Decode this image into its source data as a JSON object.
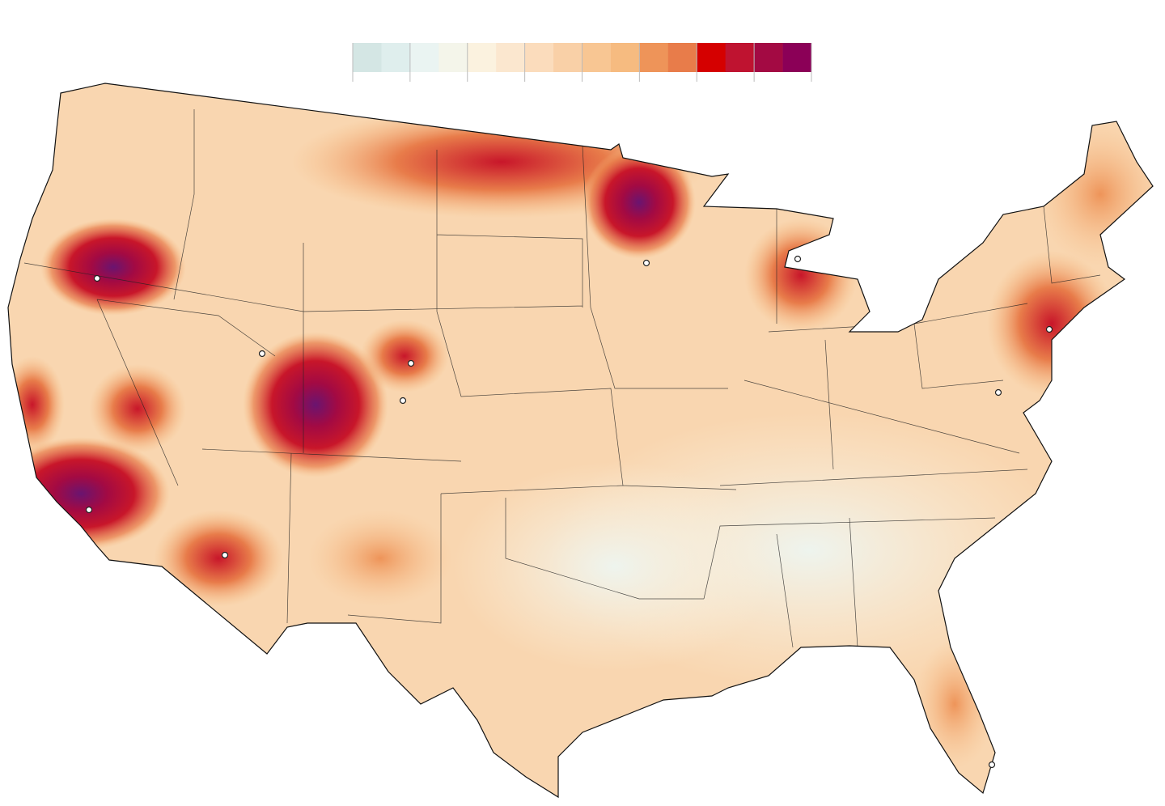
{
  "legend": {
    "colors": [
      "#d4e6e4",
      "#dfeeed",
      "#eaf4f2",
      "#f4f5ea",
      "#fbf2df",
      "#fbe7cf",
      "#fbdcbc",
      "#f9d0a7",
      "#f8c693",
      "#f6bb80",
      "#ee9459",
      "#e87c4a",
      "#d50000",
      "#bf1330",
      "#a30a43",
      "#8b0057"
    ]
  }
}
